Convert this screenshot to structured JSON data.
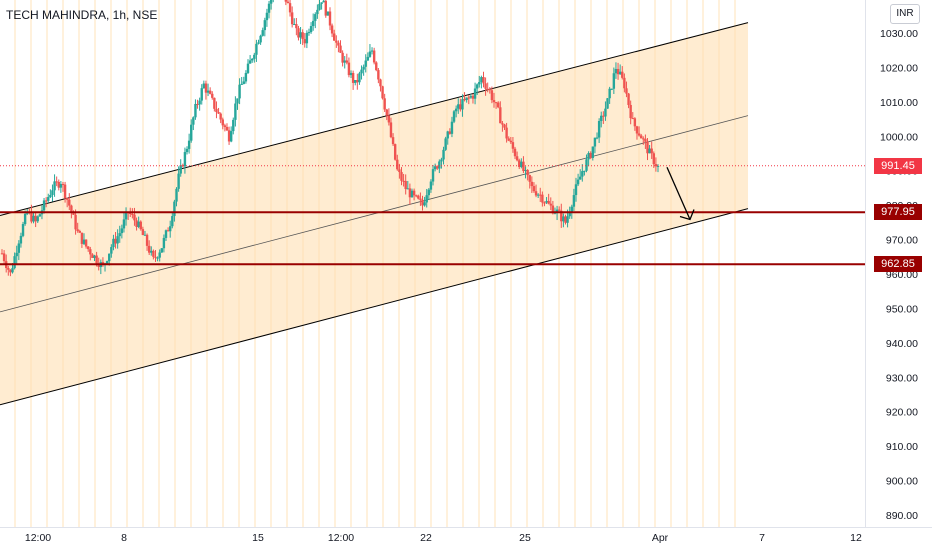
{
  "header": {
    "title": "TECH MAHINDRA, 1h, NSE"
  },
  "currency_button": {
    "label": "INR"
  },
  "price_badges": {
    "last": {
      "label": "991.45",
      "color": "#f23645"
    },
    "support1": {
      "label": "977.95",
      "color": "#990000"
    },
    "support2": {
      "label": "962.85",
      "color": "#990000"
    }
  },
  "chart_data": {
    "type": "candlestick",
    "title": "TECH MAHINDRA, 1h, NSE",
    "ylim": [
      885,
      1035
    ],
    "yticks": [
      "1030.00",
      "1020.00",
      "1010.00",
      "1000.00",
      "990.00",
      "980.00",
      "970.00",
      "960.00",
      "950.00",
      "940.00",
      "930.00",
      "920.00",
      "910.00",
      "900.00",
      "890.00"
    ],
    "xticks": [
      "12:00",
      "8",
      "15",
      "12:00",
      "22",
      "25",
      "Apr",
      "7",
      "12"
    ],
    "last_price": 991.45,
    "horizontal_levels": [
      977.95,
      962.85
    ],
    "channel": {
      "upper": {
        "from": 977,
        "to": 1033
      },
      "middle": {
        "from": 949,
        "to": 1006
      },
      "lower": {
        "from": 922,
        "to": 979
      }
    },
    "projection": {
      "from": 991,
      "to": 977
    },
    "path": [
      966,
      960,
      970,
      978,
      975,
      980,
      985,
      987,
      980,
      972,
      968,
      965,
      962,
      968,
      972,
      978,
      975,
      970,
      964,
      968,
      975,
      988,
      997,
      1008,
      1015,
      1010,
      1005,
      1000,
      1012,
      1018,
      1025,
      1032,
      1040,
      1045,
      1038,
      1030,
      1028,
      1035,
      1040,
      1033,
      1025,
      1020,
      1015,
      1020,
      1025,
      1015,
      1003,
      990,
      985,
      982,
      980,
      988,
      993,
      1000,
      1008,
      1010,
      1012,
      1017,
      1013,
      1007,
      1000,
      995,
      990,
      985,
      983,
      980,
      978,
      975,
      983,
      990,
      995,
      1003,
      1010,
      1020,
      1015,
      1004,
      1000,
      995,
      991
    ]
  }
}
